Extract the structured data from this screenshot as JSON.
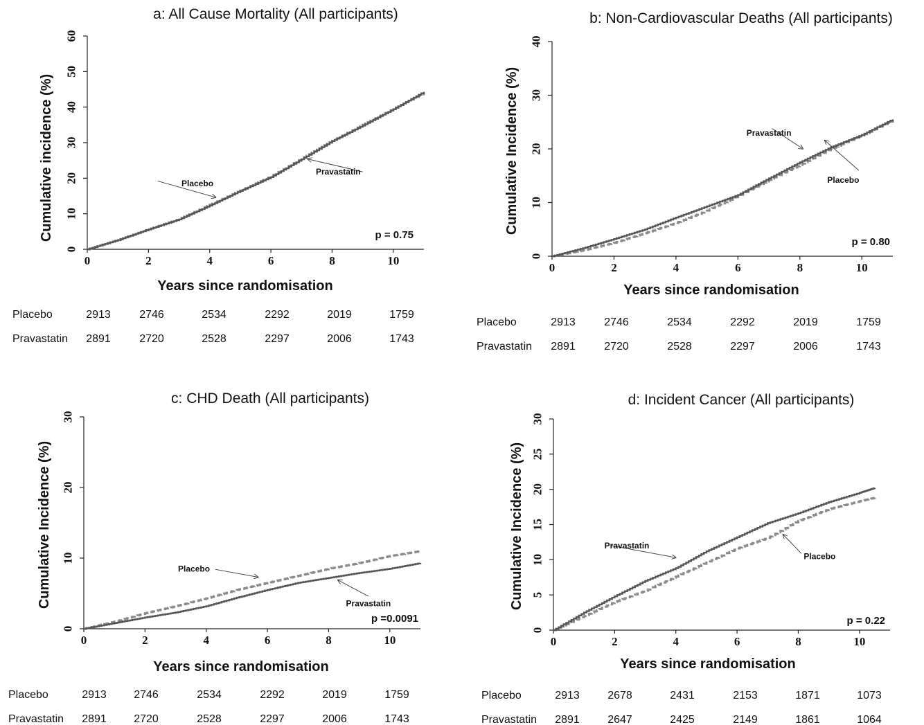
{
  "chart_data": [
    {
      "type": "line",
      "title": "a: All Cause Mortality (All participants)",
      "xlabel": "Years since randomisation",
      "ylabel": "Cumulative incidence (%)",
      "xlim": [
        0,
        11
      ],
      "ylim": [
        0,
        60
      ],
      "xticks": [
        0,
        2,
        4,
        6,
        8,
        10
      ],
      "yticks": [
        0,
        10,
        20,
        30,
        40,
        50,
        60
      ],
      "p_value": "p = 0.75",
      "series": [
        {
          "name": "Placebo",
          "style": "dashed",
          "color": "#8a8a8a",
          "x": [
            0,
            1,
            2,
            3,
            4,
            5,
            6,
            7,
            8,
            9,
            10,
            11
          ],
          "y": [
            0,
            2.6,
            5.6,
            8.5,
            12.5,
            16.5,
            20.5,
            25.5,
            30.5,
            35,
            39.5,
            44
          ]
        },
        {
          "name": "Pravastatin",
          "style": "solid",
          "color": "#555555",
          "x": [
            0,
            1,
            2,
            3,
            4,
            5,
            6,
            7,
            8,
            9,
            10,
            11
          ],
          "y": [
            0,
            2.6,
            5.6,
            8.4,
            12.3,
            16.4,
            20.3,
            25.3,
            30.4,
            34.8,
            39.4,
            44.3
          ]
        }
      ],
      "annotations": [
        {
          "text": "Placebo",
          "x": 3.6,
          "y": 18.5,
          "tx": 2.3,
          "ty": 19.2,
          "ax": 4.2,
          "ay": 14.6
        },
        {
          "text": "Pravastatin",
          "x": 8.2,
          "y": 21.8,
          "tx": 9.0,
          "ty": 21.8,
          "ax": 7.2,
          "ay": 25.4
        }
      ],
      "risk_table": {
        "rows": [
          {
            "label": "Placebo",
            "values": [
              "2913",
              "2746",
              "2534",
              "2292",
              "2019",
              "1759"
            ]
          },
          {
            "label": "Pravastatin",
            "values": [
              "2891",
              "2720",
              "2528",
              "2297",
              "2006",
              "1743"
            ]
          }
        ]
      }
    },
    {
      "type": "line",
      "title": "b: Non-Cardiovascular Deaths (All participants)",
      "xlabel": "Years since randomisation",
      "ylabel": "Cumulative Incidence (%)",
      "xlim": [
        0,
        11
      ],
      "ylim": [
        0,
        40
      ],
      "xticks": [
        0,
        2,
        4,
        6,
        8,
        10
      ],
      "yticks": [
        0,
        10,
        20,
        30,
        40
      ],
      "p_value": "p = 0.80",
      "series": [
        {
          "name": "Placebo",
          "style": "dashed",
          "color": "#8a8a8a",
          "x": [
            0,
            1,
            2,
            3,
            4,
            5,
            6,
            7,
            8,
            9,
            10,
            11
          ],
          "y": [
            0,
            1.1,
            2.5,
            4.3,
            6.2,
            8.5,
            11.2,
            14.2,
            17.0,
            20.0,
            22.5,
            25.3
          ]
        },
        {
          "name": "Pravastatin",
          "style": "solid",
          "color": "#555555",
          "x": [
            0,
            1,
            2,
            3,
            4,
            5,
            6,
            7,
            8,
            9,
            10,
            11
          ],
          "y": [
            0,
            1.5,
            3.2,
            5.0,
            7.2,
            9.3,
            11.4,
            14.5,
            17.5,
            20.3,
            22.6,
            25.5
          ]
        }
      ],
      "annotations": [
        {
          "text": "Pravastatin",
          "x": 7.0,
          "y": 23.0,
          "tx": 7.1,
          "ty": 23.8,
          "ax": 8.1,
          "ay": 20.0
        },
        {
          "text": "Placebo",
          "x": 9.4,
          "y": 14.2,
          "tx": 9.9,
          "ty": 16.0,
          "ax": 8.8,
          "ay": 21.6
        }
      ],
      "risk_table": {
        "rows": [
          {
            "label": "Placebo",
            "values": [
              "2913",
              "2746",
              "2534",
              "2292",
              "2019",
              "1759"
            ]
          },
          {
            "label": "Pravastatin",
            "values": [
              "2891",
              "2720",
              "2528",
              "2297",
              "2006",
              "1743"
            ]
          }
        ]
      }
    },
    {
      "type": "line",
      "title": "c: CHD Death (All participants)",
      "xlabel": "Years since randomisation",
      "ylabel": "Cumulative Incidence (%)",
      "xlim": [
        0,
        11
      ],
      "ylim": [
        0,
        30
      ],
      "xticks": [
        0,
        2,
        4,
        6,
        8,
        10
      ],
      "yticks": [
        0,
        10,
        20,
        30
      ],
      "p_value": "p =0.0091",
      "series": [
        {
          "name": "Placebo",
          "style": "dashed",
          "color": "#8a8a8a",
          "x": [
            0,
            1,
            2,
            3,
            4,
            5,
            6,
            7,
            8,
            9,
            10,
            11
          ],
          "y": [
            0,
            1.0,
            2.2,
            3.2,
            4.3,
            5.5,
            6.5,
            7.5,
            8.5,
            9.3,
            10.3,
            11.0
          ]
        },
        {
          "name": "Pravastatin",
          "style": "solid",
          "color": "#555555",
          "x": [
            0,
            1,
            2,
            3,
            4,
            5,
            6,
            7,
            8,
            9,
            10,
            11
          ],
          "y": [
            0,
            0.8,
            1.6,
            2.3,
            3.2,
            4.4,
            5.5,
            6.5,
            7.2,
            7.9,
            8.5,
            9.3
          ]
        }
      ],
      "annotations": [
        {
          "text": "Placebo",
          "x": 3.6,
          "y": 8.5,
          "tx": 4.3,
          "ty": 8.4,
          "ax": 5.7,
          "ay": 7.3
        },
        {
          "text": "Pravastatin",
          "x": 9.3,
          "y": 3.6,
          "tx": 9.3,
          "ty": 4.6,
          "ax": 8.3,
          "ay": 6.9
        }
      ],
      "risk_table": {
        "rows": [
          {
            "label": "Placebo",
            "values": [
              "2913",
              "2746",
              "2534",
              "2292",
              "2019",
              "1759"
            ]
          },
          {
            "label": "Pravastatin",
            "values": [
              "2891",
              "2720",
              "2528",
              "2297",
              "2006",
              "1743"
            ]
          }
        ]
      }
    },
    {
      "type": "line",
      "title": "d: Incident Cancer (All participants)",
      "xlabel": "Years since randomisation",
      "ylabel": "Cumulative Incidence (%)",
      "xlim": [
        0,
        11
      ],
      "ylim": [
        0,
        30
      ],
      "xticks": [
        0,
        2,
        4,
        6,
        8,
        10
      ],
      "yticks": [
        0,
        5,
        10,
        15,
        20,
        25,
        30
      ],
      "p_value": "p = 0.22",
      "series": [
        {
          "name": "Placebo",
          "style": "dashed",
          "color": "#8a8a8a",
          "x": [
            0,
            1,
            2,
            3,
            4,
            5,
            6,
            7,
            8,
            9,
            10,
            10.5
          ],
          "y": [
            0,
            2.0,
            4.0,
            5.6,
            7.6,
            9.6,
            11.6,
            13.1,
            15.5,
            17.2,
            18.3,
            18.8
          ]
        },
        {
          "name": "Pravastatin",
          "style": "solid",
          "color": "#555555",
          "x": [
            0,
            1,
            2,
            3,
            4,
            5,
            6,
            7,
            8,
            9,
            10,
            10.5
          ],
          "y": [
            0,
            2.5,
            4.8,
            7.0,
            8.8,
            11.2,
            13.2,
            15.2,
            16.6,
            18.2,
            19.5,
            20.2
          ]
        }
      ],
      "annotations": [
        {
          "text": "Pravastatin",
          "x": 2.4,
          "y": 12.0,
          "tx": 1.9,
          "ty": 12.0,
          "ax": 4.0,
          "ay": 10.3
        },
        {
          "text": "Placebo",
          "x": 8.7,
          "y": 10.5,
          "tx": 8.1,
          "ty": 10.9,
          "ax": 7.5,
          "ay": 13.6
        }
      ],
      "risk_table": {
        "rows": [
          {
            "label": "Placebo",
            "values": [
              "2913",
              "2678",
              "2431",
              "2153",
              "1871",
              "1073"
            ]
          },
          {
            "label": "Pravastatin",
            "values": [
              "2891",
              "2647",
              "2425",
              "2149",
              "1861",
              "1064"
            ]
          }
        ]
      }
    }
  ]
}
